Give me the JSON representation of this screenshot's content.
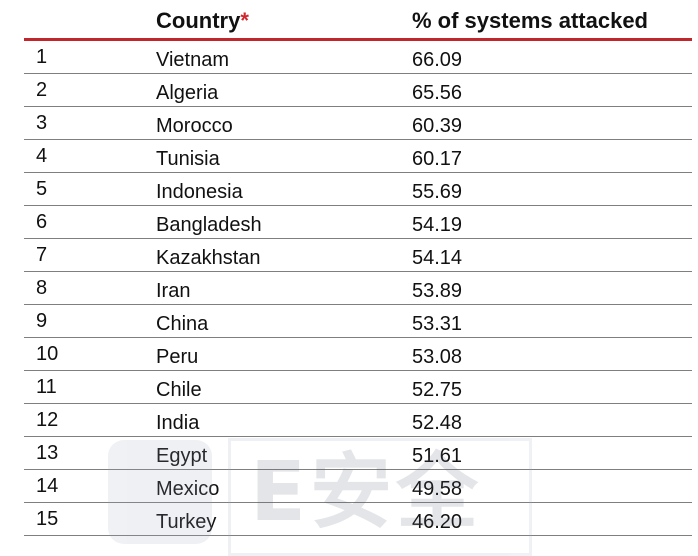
{
  "table": {
    "header": {
      "rank": "",
      "country": "Country",
      "asterisk": "*",
      "percent": "% of systems attacked"
    },
    "rows": [
      {
        "rank": "1",
        "country": "Vietnam",
        "value": "66.09"
      },
      {
        "rank": "2",
        "country": "Algeria",
        "value": "65.56"
      },
      {
        "rank": "3",
        "country": "Morocco",
        "value": "60.39"
      },
      {
        "rank": "4",
        "country": "Tunisia",
        "value": "60.17"
      },
      {
        "rank": "5",
        "country": "Indonesia",
        "value": "55.69"
      },
      {
        "rank": "6",
        "country": "Bangladesh",
        "value": "54.19"
      },
      {
        "rank": "7",
        "country": "Kazakhstan",
        "value": "54.14"
      },
      {
        "rank": "8",
        "country": "Iran",
        "value": "53.89"
      },
      {
        "rank": "9",
        "country": "China",
        "value": "53.31"
      },
      {
        "rank": "10",
        "country": "Peru",
        "value": "53.08"
      },
      {
        "rank": "11",
        "country": "Chile",
        "value": "52.75"
      },
      {
        "rank": "12",
        "country": "India",
        "value": "52.48"
      },
      {
        "rank": "13",
        "country": "Egypt",
        "value": "51.61"
      },
      {
        "rank": "14",
        "country": "Mexico",
        "value": "49.58"
      },
      {
        "rank": "15",
        "country": "Turkey",
        "value": "46.20"
      }
    ]
  },
  "watermark": {
    "text": "E安全"
  },
  "colors": {
    "header_rule": "#c0272d",
    "asterisk": "#d0262d",
    "row_rule": "#7f7f7f"
  }
}
